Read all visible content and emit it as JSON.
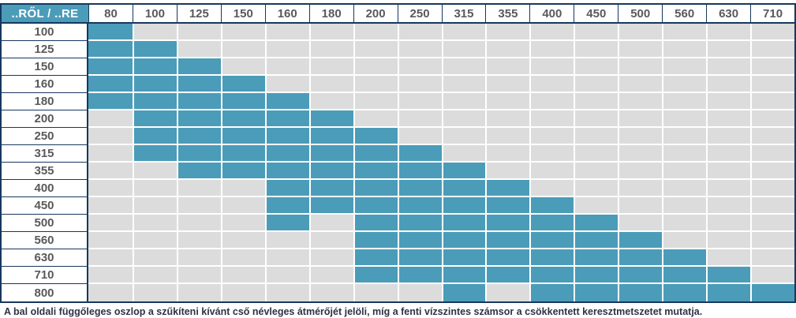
{
  "chart_data": {
    "type": "table",
    "corner_label": "..RŐL / ..RE",
    "columns": [
      "80",
      "100",
      "125",
      "150",
      "160",
      "180",
      "200",
      "250",
      "315",
      "355",
      "400",
      "450",
      "500",
      "560",
      "630",
      "710"
    ],
    "rows": [
      {
        "label": "100",
        "filled": [
          "80"
        ]
      },
      {
        "label": "125",
        "filled": [
          "80",
          "100"
        ]
      },
      {
        "label": "150",
        "filled": [
          "80",
          "100",
          "125"
        ]
      },
      {
        "label": "160",
        "filled": [
          "80",
          "100",
          "125",
          "150"
        ]
      },
      {
        "label": "180",
        "filled": [
          "80",
          "100",
          "125",
          "150",
          "160"
        ]
      },
      {
        "label": "200",
        "filled": [
          "100",
          "125",
          "150",
          "160",
          "180"
        ]
      },
      {
        "label": "250",
        "filled": [
          "100",
          "125",
          "150",
          "160",
          "180",
          "200"
        ]
      },
      {
        "label": "315",
        "filled": [
          "100",
          "125",
          "150",
          "160",
          "180",
          "200",
          "250"
        ]
      },
      {
        "label": "355",
        "filled": [
          "125",
          "150",
          "160",
          "180",
          "200",
          "250",
          "315"
        ]
      },
      {
        "label": "400",
        "filled": [
          "160",
          "180",
          "200",
          "250",
          "315",
          "355"
        ]
      },
      {
        "label": "450",
        "filled": [
          "160",
          "180",
          "200",
          "250",
          "315",
          "355",
          "400"
        ]
      },
      {
        "label": "500",
        "filled": [
          "160",
          "200",
          "250",
          "315",
          "355",
          "400",
          "450"
        ]
      },
      {
        "label": "560",
        "filled": [
          "200",
          "250",
          "315",
          "355",
          "400",
          "450",
          "500"
        ]
      },
      {
        "label": "630",
        "filled": [
          "200",
          "250",
          "315",
          "355",
          "400",
          "450",
          "500",
          "560"
        ]
      },
      {
        "label": "710",
        "filled": [
          "200",
          "250",
          "315",
          "355",
          "400",
          "450",
          "500",
          "560",
          "630"
        ]
      },
      {
        "label": "800",
        "filled": [
          "315",
          "400",
          "450",
          "500",
          "560",
          "630",
          "710"
        ]
      }
    ]
  },
  "caption": "A bal oldali függőleges oszlop a szűkíteni kívánt cső névleges átmérőjét jelöli, míg a fenti vízszintes számsor a csökkentett keresztmetszetet mutatja.",
  "colors": {
    "filled_cell": "#4b9cb9",
    "empty_cell": "#dcdcdc",
    "border": "#17375e",
    "header_text": "#595959",
    "caption_text": "#2c3345",
    "corner_text": "#ffffff"
  }
}
